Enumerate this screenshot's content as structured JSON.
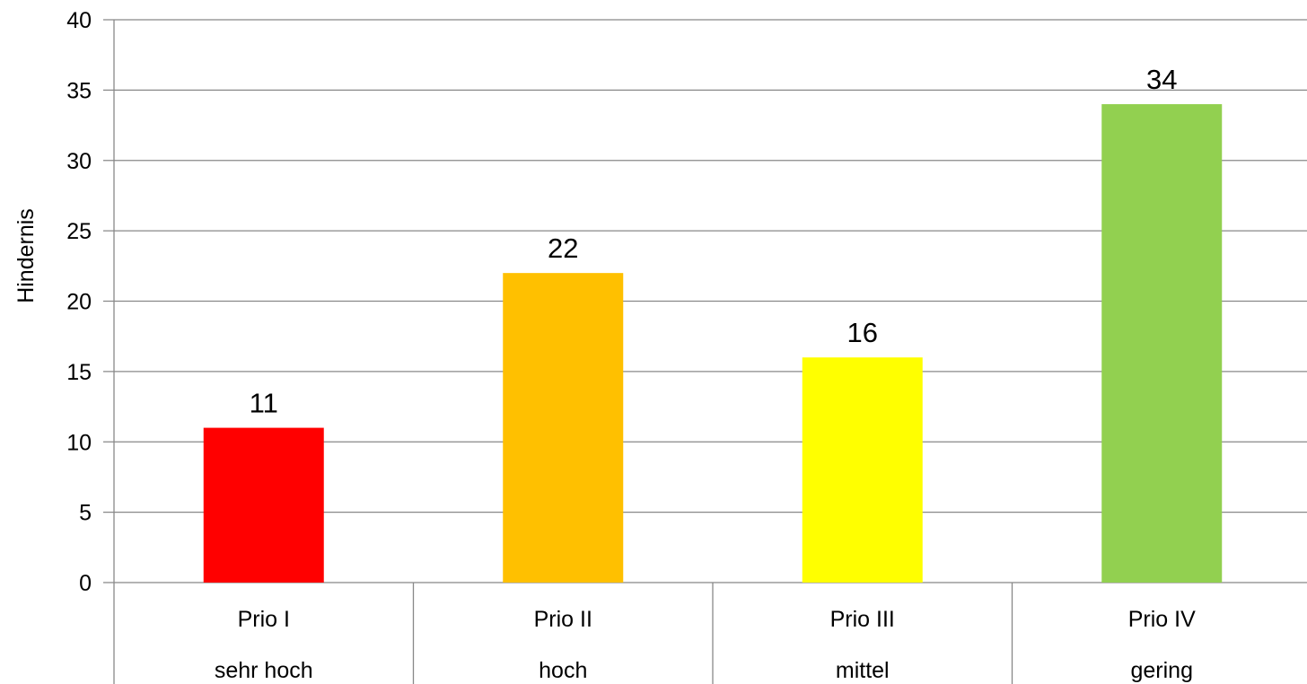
{
  "chart_data": {
    "type": "bar",
    "title": "",
    "xlabel": "",
    "ylabel": "Hindernis",
    "ylim": [
      0,
      40
    ],
    "yticks": [
      0,
      5,
      10,
      15,
      20,
      25,
      30,
      35,
      40
    ],
    "grid": true,
    "legend": "none",
    "categories": [
      {
        "line1": "Prio I",
        "line2": "sehr hoch",
        "value": 11,
        "color": "#ff0000"
      },
      {
        "line1": "Prio II",
        "line2": "hoch",
        "value": 22,
        "color": "#ffc000"
      },
      {
        "line1": "Prio III",
        "line2": "mittel",
        "value": 16,
        "color": "#ffff00"
      },
      {
        "line1": "Prio IV",
        "line2": "gering",
        "value": 34,
        "color": "#92d050"
      }
    ],
    "colors": {
      "gridline": "#888888",
      "axis": "#888888",
      "text": "#000000"
    }
  }
}
